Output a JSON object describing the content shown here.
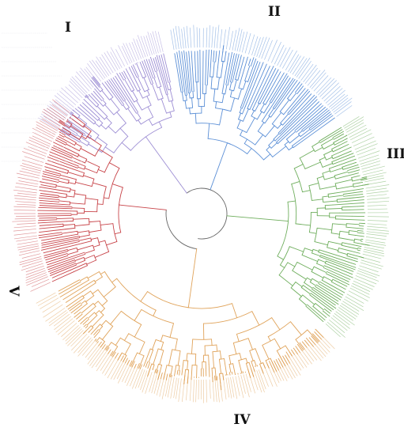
{
  "figure": {
    "type": "circular phylogenetic tree",
    "background": "#ffffff",
    "root_color": "#666666",
    "clades": [
      {
        "id": "I",
        "label": "I",
        "color": "#9d8ed4"
      },
      {
        "id": "II",
        "label": "II",
        "color": "#5b8fd6"
      },
      {
        "id": "III",
        "label": "III",
        "color": "#6fae5d"
      },
      {
        "id": "IV",
        "label": "IV",
        "color": "#e0a35a"
      },
      {
        "id": "V",
        "label": "V",
        "color": "#c8454a"
      }
    ]
  }
}
